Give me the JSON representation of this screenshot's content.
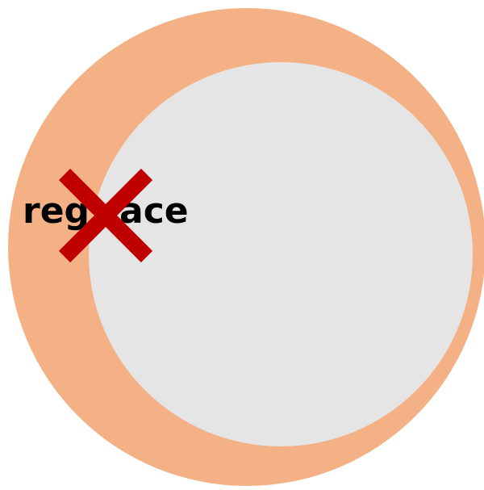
{
  "label_fragments": [
    "reg",
    "ace"
  ]
}
